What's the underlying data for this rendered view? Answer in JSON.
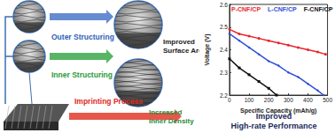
{
  "diagram": {
    "outer_structuring": "Outer Structuring",
    "inner_structuring": "Inner Structuring",
    "imprinting_process": "Imprinting Process",
    "improved_surface_area": "Improved Surface Area",
    "increased_inner_density": "Increased Inner Density",
    "result": [
      "Improved",
      "High-rate Performance"
    ]
  },
  "chart_data": {
    "type": "line",
    "x_label": "Specific Capacity (mAh/g)",
    "y_label": "Voltage (V)",
    "xlim": [
      0,
      500
    ],
    "xticks": [
      0,
      100,
      200,
      300,
      400,
      500
    ],
    "ylim": [
      2.2,
      2.6
    ],
    "yticks": [
      2.2,
      2.3,
      2.4,
      2.5,
      2.6
    ],
    "grid": false,
    "legend": "top",
    "series": [
      {
        "name": "P-CNF/CP",
        "color": "#e8262b",
        "marker": "circle",
        "x": [
          0,
          50,
          100,
          150,
          200,
          250,
          300,
          350,
          400,
          450,
          490
        ],
        "values": [
          2.49,
          2.47,
          2.46,
          2.45,
          2.44,
          2.43,
          2.42,
          2.41,
          2.4,
          2.39,
          2.38
        ]
      },
      {
        "name": "L-CNF/CP",
        "color": "#2f4fd8",
        "marker": "diamond",
        "x": [
          0,
          50,
          100,
          150,
          200,
          250,
          300,
          350,
          400,
          450,
          480
        ],
        "values": [
          2.47,
          2.44,
          2.41,
          2.38,
          2.35,
          2.33,
          2.3,
          2.28,
          2.25,
          2.22,
          2.2
        ]
      },
      {
        "name": "F-CNF/CP",
        "color": "#111111",
        "marker": "rect",
        "x": [
          0,
          50,
          100,
          150,
          200,
          240
        ],
        "values": [
          2.36,
          2.32,
          2.29,
          2.26,
          2.23,
          2.2
        ]
      }
    ]
  }
}
